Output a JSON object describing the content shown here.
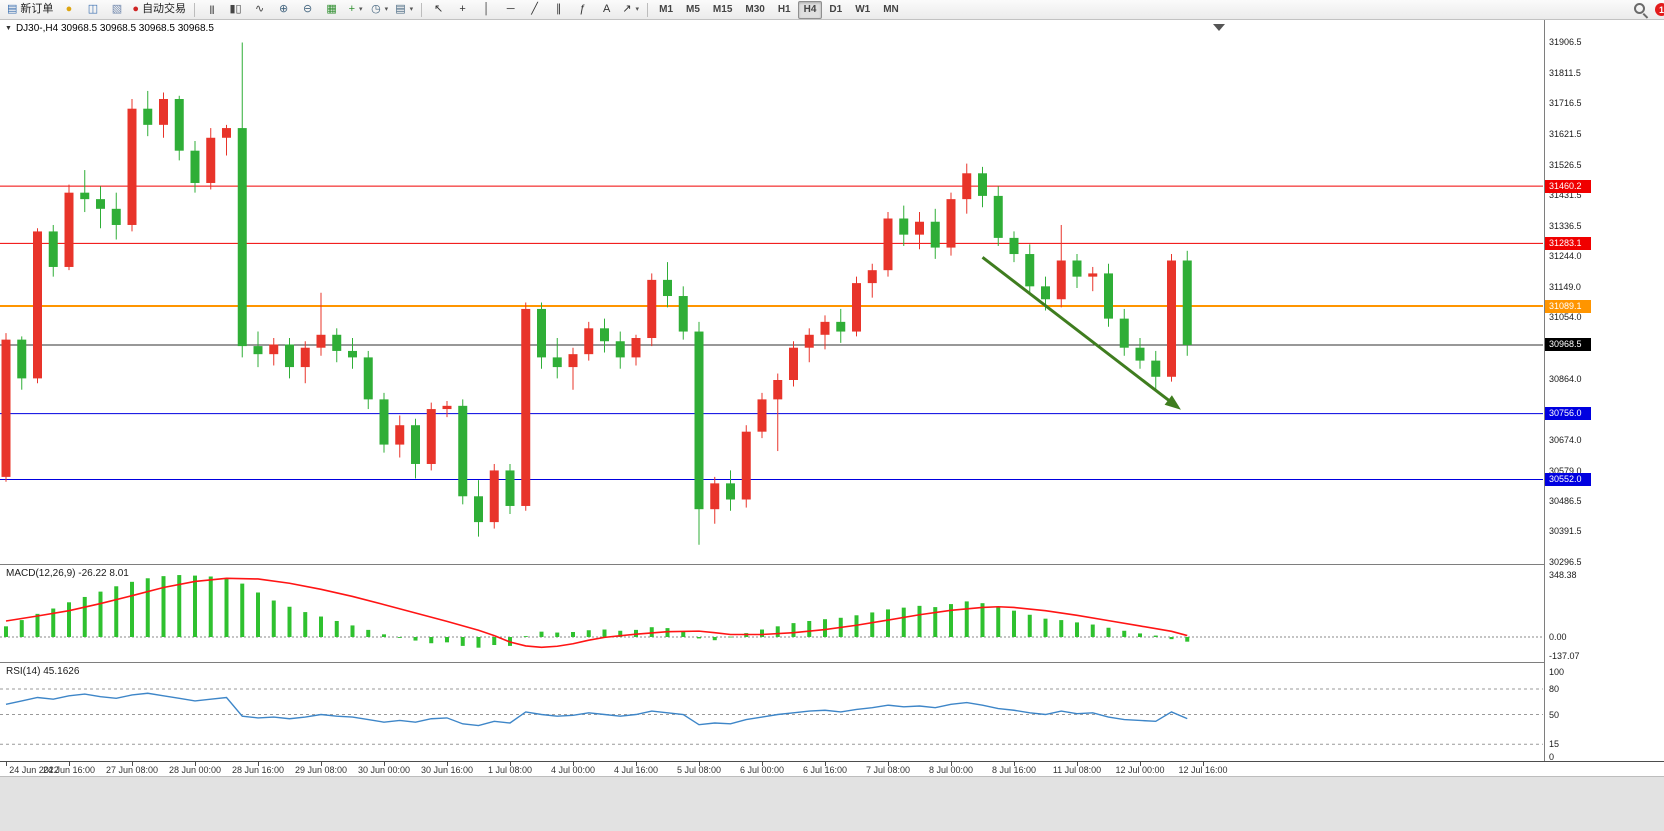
{
  "toolbar": {
    "groups": [
      {
        "name": "trade-group",
        "icons": [
          {
            "name": "new-order-button",
            "glyph": "▤",
            "color": "#3a6fb0",
            "label": "新订单"
          },
          {
            "name": "market-watch-icon",
            "glyph": "●",
            "color": "#dda511"
          },
          {
            "name": "data-window-icon",
            "glyph": "◫",
            "color": "#3a6fb0"
          },
          {
            "name": "navigator-icon",
            "glyph": "▧",
            "color": "#7188ad"
          },
          {
            "name": "autotrade-button",
            "glyph": "●",
            "color": "#cf2525",
            "label": "自动交易"
          }
        ]
      },
      {
        "name": "chart-type-group",
        "icons": [
          {
            "name": "bars-chart-icon",
            "glyph": "|||",
            "color": "#444"
          },
          {
            "name": "candlestick-chart-icon",
            "glyph": "▮▯",
            "color": "#444"
          },
          {
            "name": "line-chart-icon",
            "glyph": "∿",
            "color": "#444"
          },
          {
            "name": "zoom-in-icon",
            "glyph": "⊕",
            "color": "#44657f"
          },
          {
            "name": "zoom-out-icon",
            "glyph": "⊖",
            "color": "#44657f"
          },
          {
            "name": "tile-windows-icon",
            "glyph": "▦",
            "color": "#2f8f2f"
          },
          {
            "name": "indicators-icon",
            "glyph": "+",
            "color": "#2f8f2f",
            "caret": true
          },
          {
            "name": "periods-icon",
            "glyph": "◷",
            "color": "#44657f",
            "caret": true
          },
          {
            "name": "templates-icon",
            "glyph": "▤",
            "color": "#44657f",
            "caret": true
          }
        ]
      },
      {
        "name": "drawing-group",
        "icons": [
          {
            "name": "cursor-icon",
            "glyph": "↖",
            "color": "#333"
          },
          {
            "name": "crosshair-icon",
            "glyph": "+",
            "color": "#333"
          },
          {
            "name": "vertical-line-icon",
            "glyph": "│",
            "color": "#333"
          },
          {
            "name": "horizontal-line-icon",
            "glyph": "─",
            "color": "#333"
          },
          {
            "name": "trendline-icon",
            "glyph": "╱",
            "color": "#333"
          },
          {
            "name": "channel-icon",
            "glyph": "∥",
            "color": "#333"
          },
          {
            "name": "fibonacci-icon",
            "glyph": "ƒ",
            "color": "#333"
          },
          {
            "name": "text-icon",
            "glyph": "A",
            "color": "#333"
          },
          {
            "name": "arrow-tools-icon",
            "glyph": "↗",
            "color": "#333",
            "caret": true
          }
        ]
      }
    ],
    "timeframes": {
      "items": [
        "M1",
        "M5",
        "M15",
        "M30",
        "H1",
        "H4",
        "D1",
        "W1",
        "MN"
      ],
      "active": "H4"
    },
    "notification_badge": "1"
  },
  "chart": {
    "symbol_line": "DJ30-,H4  30968.5 30968.5 30968.5 30968.5",
    "price_axis_labels": [
      "31906.5",
      "31811.5",
      "31716.5",
      "31621.5",
      "31526.5",
      "31431.5",
      "31336.5",
      "31244.0",
      "31149.0",
      "31054.0",
      "30864.0",
      "30674.0",
      "30579.0",
      "30486.5",
      "30391.5",
      "30296.5"
    ],
    "price_tags": [
      {
        "text": "31460.2",
        "color": "#f00000"
      },
      {
        "text": "31283.1",
        "color": "#f00000"
      },
      {
        "text": "31089.1",
        "color": "#ff9500"
      },
      {
        "text": "30968.5",
        "color": "#000000"
      },
      {
        "text": "30756.0",
        "color": "#0000e0"
      },
      {
        "text": "30552.0",
        "color": "#0000e0"
      }
    ],
    "time_axis_labels": [
      {
        "bar": 0,
        "text": "24 Jun 2022"
      },
      {
        "bar": 4,
        "text": "24 Jun 16:00"
      },
      {
        "bar": 8,
        "text": "27 Jun 08:00"
      },
      {
        "bar": 12,
        "text": "28 Jun 00:00"
      },
      {
        "bar": 16,
        "text": "28 Jun 16:00"
      },
      {
        "bar": 20,
        "text": "29 Jun 08:00"
      },
      {
        "bar": 24,
        "text": "30 Jun 00:00"
      },
      {
        "bar": 28,
        "text": "30 Jun 16:00"
      },
      {
        "bar": 32,
        "text": "1 Jul 08:00"
      },
      {
        "bar": 36,
        "text": "4 Jul 00:00"
      },
      {
        "bar": 40,
        "text": "4 Jul 16:00"
      },
      {
        "bar": 44,
        "text": "5 Jul 08:00"
      },
      {
        "bar": 48,
        "text": "6 Jul 00:00"
      },
      {
        "bar": 52,
        "text": "6 Jul 16:00"
      },
      {
        "bar": 56,
        "text": "7 Jul 08:00"
      },
      {
        "bar": 60,
        "text": "8 Jul 00:00"
      },
      {
        "bar": 64,
        "text": "8 Jul 16:00"
      },
      {
        "bar": 68,
        "text": "11 Jul 08:00"
      },
      {
        "bar": 72,
        "text": "12 Jul 00:00"
      },
      {
        "bar": 76,
        "text": "12 Jul 16:00"
      }
    ]
  },
  "macd": {
    "label": "MACD(12,26,9) -26.22 8.01",
    "axis_labels": [
      "348.38",
      "0.00",
      "-137.07"
    ]
  },
  "rsi": {
    "label": "RSI(14) 45.1626",
    "axis_labels": [
      "100",
      "80",
      "50",
      "15",
      "0"
    ],
    "levels": [
      80,
      50,
      15
    ]
  },
  "chart_data": {
    "type": "candlestick",
    "symbol": "DJ30-",
    "timeframe": "H4",
    "price_range": [
      30296.5,
      31906.5
    ],
    "last_price": 30968.5,
    "color_convention": "red=up, green=down",
    "up_color": "#e8342a",
    "down_color": "#2fae37",
    "ohlc": [
      [
        30560,
        31005,
        30545,
        30985
      ],
      [
        30985,
        30995,
        30830,
        30865
      ],
      [
        30865,
        31330,
        30850,
        31320
      ],
      [
        31320,
        31340,
        31180,
        31210
      ],
      [
        31210,
        31465,
        31200,
        31440
      ],
      [
        31440,
        31510,
        31380,
        31420
      ],
      [
        31420,
        31460,
        31330,
        31390
      ],
      [
        31390,
        31440,
        31295,
        31340
      ],
      [
        31340,
        31730,
        31320,
        31700
      ],
      [
        31700,
        31755,
        31615,
        31650
      ],
      [
        31650,
        31750,
        31610,
        31730
      ],
      [
        31730,
        31740,
        31540,
        31570
      ],
      [
        31570,
        31600,
        31440,
        31470
      ],
      [
        31470,
        31640,
        31450,
        31610
      ],
      [
        31610,
        31650,
        31555,
        31640
      ],
      [
        31640,
        31905,
        30930,
        30965
      ],
      [
        30965,
        31010,
        30900,
        30940
      ],
      [
        30940,
        30990,
        30905,
        30970
      ],
      [
        30970,
        30990,
        30865,
        30900
      ],
      [
        30900,
        30980,
        30850,
        30960
      ],
      [
        30960,
        31130,
        30935,
        31000
      ],
      [
        31000,
        31020,
        30915,
        30950
      ],
      [
        30950,
        30990,
        30895,
        30930
      ],
      [
        30930,
        30950,
        30770,
        30800
      ],
      [
        30800,
        30820,
        30635,
        30660
      ],
      [
        30660,
        30750,
        30620,
        30720
      ],
      [
        30720,
        30740,
        30555,
        30600
      ],
      [
        30600,
        30790,
        30580,
        30770
      ],
      [
        30770,
        30795,
        30745,
        30780
      ],
      [
        30780,
        30800,
        30475,
        30500
      ],
      [
        30500,
        30550,
        30375,
        30420
      ],
      [
        30420,
        30600,
        30400,
        30580
      ],
      [
        30580,
        30600,
        30445,
        30470
      ],
      [
        30470,
        31100,
        30455,
        31080
      ],
      [
        31080,
        31100,
        30895,
        30930
      ],
      [
        30930,
        30990,
        30865,
        30900
      ],
      [
        30900,
        30960,
        30830,
        30940
      ],
      [
        30940,
        31040,
        30920,
        31020
      ],
      [
        31020,
        31050,
        30945,
        30980
      ],
      [
        30980,
        31010,
        30895,
        30930
      ],
      [
        30930,
        31000,
        30905,
        30990
      ],
      [
        30990,
        31190,
        30965,
        31170
      ],
      [
        31170,
        31225,
        31085,
        31120
      ],
      [
        31120,
        31150,
        30985,
        31010
      ],
      [
        31010,
        31040,
        30350,
        30460
      ],
      [
        30460,
        30560,
        30415,
        30540
      ],
      [
        30540,
        30580,
        30455,
        30490
      ],
      [
        30490,
        30720,
        30465,
        30700
      ],
      [
        30700,
        30820,
        30680,
        30800
      ],
      [
        30800,
        30880,
        30640,
        30860
      ],
      [
        30860,
        30980,
        30840,
        30960
      ],
      [
        30960,
        31020,
        30915,
        31000
      ],
      [
        31000,
        31060,
        30955,
        31040
      ],
      [
        31040,
        31080,
        30975,
        31010
      ],
      [
        31010,
        31180,
        30995,
        31160
      ],
      [
        31160,
        31220,
        31115,
        31200
      ],
      [
        31200,
        31380,
        31180,
        31360
      ],
      [
        31360,
        31400,
        31275,
        31310
      ],
      [
        31310,
        31380,
        31265,
        31350
      ],
      [
        31350,
        31390,
        31235,
        31270
      ],
      [
        31270,
        31440,
        31245,
        31420
      ],
      [
        31420,
        31530,
        31375,
        31500
      ],
      [
        31500,
        31520,
        31395,
        31430
      ],
      [
        31430,
        31460,
        31275,
        31300
      ],
      [
        31300,
        31320,
        31225,
        31250
      ],
      [
        31250,
        31280,
        31125,
        31150
      ],
      [
        31150,
        31180,
        31075,
        31110
      ],
      [
        31110,
        31340,
        31085,
        31230
      ],
      [
        31230,
        31250,
        31145,
        31180
      ],
      [
        31180,
        31210,
        31135,
        31190
      ],
      [
        31190,
        31220,
        31025,
        31050
      ],
      [
        31050,
        31080,
        30935,
        30960
      ],
      [
        30960,
        30990,
        30895,
        30920
      ],
      [
        30920,
        30950,
        30830,
        30870
      ],
      [
        30870,
        31250,
        30855,
        31230
      ],
      [
        31230,
        31260,
        30935,
        30968.5
      ]
    ],
    "hlines": [
      {
        "price": 31460.2,
        "color": "#f00000",
        "width": 1
      },
      {
        "price": 31283.1,
        "color": "#f00000",
        "width": 1
      },
      {
        "price": 31089.1,
        "color": "#ff9500",
        "width": 2
      },
      {
        "price": 30968.5,
        "color": "#303030",
        "width": 1,
        "role": "last-price"
      },
      {
        "price": 30756.0,
        "color": "#0000e0",
        "width": 1
      },
      {
        "price": 30552.0,
        "color": "#0000e0",
        "width": 1
      }
    ],
    "trend_arrow": {
      "from_bar": 62,
      "from_price": 31240,
      "to_bar": 74.6,
      "to_price": 30768,
      "color": "#3f7d1f"
    },
    "macd": {
      "params": "12,26,9",
      "last_main": -26.22,
      "last_signal": 8.01,
      "histogram": [
        60,
        95,
        130,
        160,
        195,
        225,
        255,
        285,
        310,
        330,
        342,
        348,
        345,
        340,
        330,
        300,
        250,
        205,
        170,
        140,
        115,
        90,
        65,
        40,
        15,
        -5,
        -20,
        -35,
        -30,
        -50,
        -60,
        -45,
        -50,
        5,
        30,
        25,
        28,
        38,
        42,
        35,
        40,
        55,
        50,
        32,
        -8,
        -18,
        2,
        22,
        42,
        60,
        78,
        90,
        100,
        108,
        122,
        138,
        155,
        165,
        175,
        168,
        185,
        200,
        190,
        170,
        148,
        125,
        103,
        95,
        82,
        70,
        52,
        35,
        20,
        8,
        -12,
        -26.22
      ],
      "signal": [
        [
          0,
          90
        ],
        [
          2,
          118
        ],
        [
          4,
          148
        ],
        [
          6,
          188
        ],
        [
          8,
          232
        ],
        [
          10,
          278
        ],
        [
          12,
          312
        ],
        [
          14,
          330
        ],
        [
          16,
          326
        ],
        [
          18,
          302
        ],
        [
          20,
          268
        ],
        [
          22,
          228
        ],
        [
          24,
          182
        ],
        [
          26,
          135
        ],
        [
          28,
          88
        ],
        [
          30,
          38
        ],
        [
          31,
          8
        ],
        [
          32,
          -28
        ],
        [
          33,
          -50
        ],
        [
          34,
          -58
        ],
        [
          35,
          -52
        ],
        [
          36,
          -38
        ],
        [
          37,
          -18
        ],
        [
          38,
          -2
        ],
        [
          40,
          16
        ],
        [
          42,
          30
        ],
        [
          44,
          33
        ],
        [
          45,
          24
        ],
        [
          46,
          14
        ],
        [
          48,
          14
        ],
        [
          50,
          24
        ],
        [
          52,
          42
        ],
        [
          54,
          66
        ],
        [
          56,
          95
        ],
        [
          58,
          125
        ],
        [
          60,
          150
        ],
        [
          62,
          166
        ],
        [
          63,
          170
        ],
        [
          64,
          166
        ],
        [
          66,
          148
        ],
        [
          68,
          122
        ],
        [
          70,
          92
        ],
        [
          72,
          62
        ],
        [
          74,
          32
        ],
        [
          75,
          8.01
        ]
      ]
    },
    "rsi": {
      "period": 14,
      "last": 45.1626,
      "values": [
        62,
        66,
        70,
        68,
        72,
        74,
        71,
        69,
        73,
        75,
        72,
        69,
        66,
        68,
        70,
        48,
        46,
        47,
        45,
        47,
        50,
        48,
        47,
        44,
        41,
        43,
        41,
        45,
        46,
        39,
        37,
        42,
        40,
        53,
        50,
        48,
        49,
        52,
        50,
        48,
        50,
        54,
        52,
        50,
        38,
        40,
        39,
        44,
        47,
        50,
        52,
        54,
        55,
        53,
        56,
        58,
        61,
        59,
        60,
        58,
        62,
        64,
        61,
        57,
        55,
        52,
        50,
        54,
        51,
        52,
        47,
        44,
        43,
        42,
        53,
        45.16
      ]
    }
  }
}
